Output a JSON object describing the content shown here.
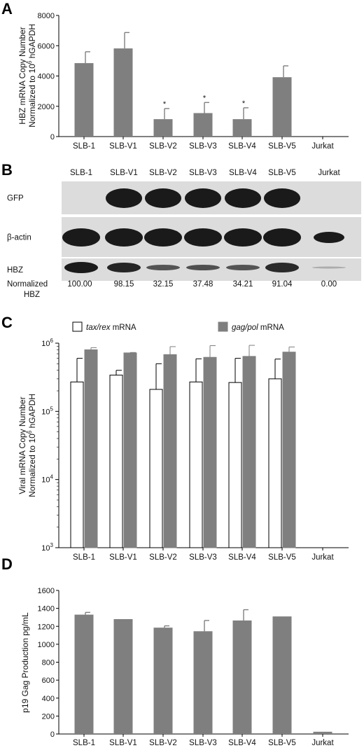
{
  "panels": {
    "A": "A",
    "B": "B",
    "C": "C",
    "D": "D"
  },
  "colors": {
    "bar_gray": "#7f7f7f",
    "blot_bg": "#d9d9d9",
    "band": "#1a1a1a"
  },
  "chart_data": [
    {
      "id": "A",
      "type": "bar",
      "ylabel_line1": "HBZ mRNA Copy Number",
      "ylabel_line2": "Normalized to 10",
      "ylabel_sup": "6",
      "ylabel_line2_end": " hGAPDH",
      "ylim": [
        0,
        8000
      ],
      "yticks": [
        "0",
        "2000",
        "4000",
        "6000",
        "8000"
      ],
      "categories": [
        "SLB-1",
        "SLB-V1",
        "SLB-V2",
        "SLB-V3",
        "SLB-V4",
        "SLB-V5",
        "Jurkat"
      ],
      "values": [
        4850,
        5820,
        1150,
        1550,
        1150,
        3920,
        0
      ],
      "errors": [
        750,
        1050,
        700,
        700,
        750,
        750,
        0
      ],
      "annotations": [
        "",
        "",
        "*",
        "*",
        "*",
        "",
        ""
      ]
    },
    {
      "id": "B",
      "type": "table",
      "lanes": [
        "SLB-1",
        "SLB-V1",
        "SLB-V2",
        "SLB-V3",
        "SLB-V4",
        "SLB-V5",
        "Jurkat"
      ],
      "rows": [
        "GFP",
        "β-actin",
        "HBZ"
      ],
      "normalized_label_1": "Normalized",
      "normalized_label_2": "HBZ",
      "normalized_values": [
        "100.00",
        "98.15",
        "32.15",
        "37.48",
        "34.21",
        "91.04",
        "0.00"
      ]
    },
    {
      "id": "C",
      "type": "bar",
      "scale": "log",
      "ylabel_line1": "Viral mRNA Copy Number",
      "ylabel_line2": "Normalized to 10",
      "ylabel_sup": "6",
      "ylabel_line2_end": " hGAPDH",
      "ylim": [
        1000,
        1000000
      ],
      "yticks": [
        {
          "base": "10",
          "exp": "3"
        },
        {
          "base": "10",
          "exp": "4"
        },
        {
          "base": "10",
          "exp": "5"
        },
        {
          "base": "10",
          "exp": "6"
        }
      ],
      "categories": [
        "SLB-1",
        "SLB-V1",
        "SLB-V2",
        "SLB-V3",
        "SLB-V4",
        "SLB-V5",
        "Jurkat"
      ],
      "series": [
        {
          "name_italic": "tax/rex",
          "name_rest": " mRNA",
          "color": "#ffffff",
          "values": [
            270000,
            340000,
            210000,
            270000,
            265000,
            300000,
            0
          ],
          "errors_top": [
            600000,
            400000,
            500000,
            590000,
            600000,
            585000,
            0
          ]
        },
        {
          "name_italic": "gag/pol",
          "name_rest": " mRNA",
          "color": "#7f7f7f",
          "values": [
            800000,
            720000,
            680000,
            620000,
            640000,
            740000,
            0
          ],
          "errors_top": [
            860000,
            730000,
            890000,
            920000,
            930000,
            880000,
            0
          ]
        }
      ]
    },
    {
      "id": "D",
      "type": "bar",
      "ylabel": "p19 Gag Production pg/mL",
      "ylim": [
        0,
        1600
      ],
      "yticks": [
        "0",
        "200",
        "400",
        "600",
        "800",
        "1000",
        "1200",
        "1400",
        "1600"
      ],
      "categories": [
        "SLB-1",
        "SLB-V1",
        "SLB-V2",
        "SLB-V3",
        "SLB-V4",
        "SLB-V5",
        "Jurkat"
      ],
      "values": [
        1330,
        1280,
        1185,
        1145,
        1265,
        1310,
        25
      ],
      "errors": [
        25,
        0,
        20,
        120,
        120,
        0,
        0
      ]
    }
  ]
}
